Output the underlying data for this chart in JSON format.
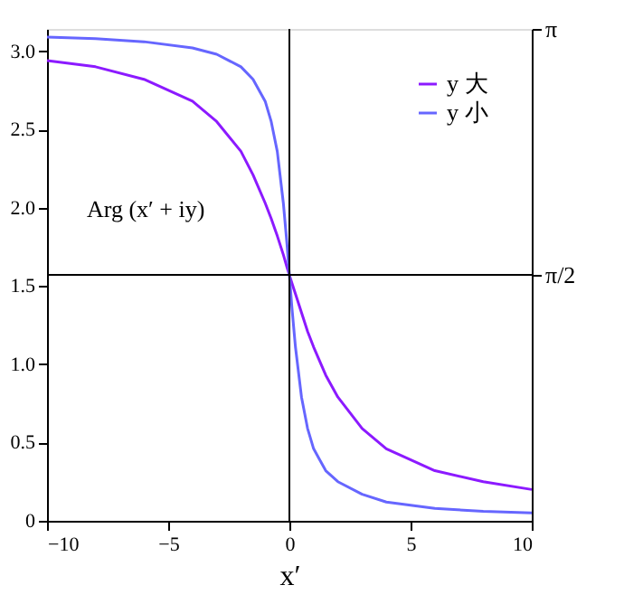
{
  "chart_data": {
    "type": "line",
    "xlabel": "x′",
    "annotations": [
      "Arg (x′ + iy)"
    ],
    "x": [
      -10,
      -8,
      -6,
      -4,
      -3,
      -2,
      -1.5,
      -1,
      -0.75,
      -0.5,
      -0.25,
      -0.1,
      0,
      0.1,
      0.25,
      0.5,
      0.75,
      1,
      1.5,
      2,
      3,
      4,
      6,
      8,
      10
    ],
    "series": [
      {
        "name": "y 大",
        "color": "#8c1aff",
        "values": [
          2.94,
          2.9,
          2.82,
          2.68,
          2.55,
          2.36,
          2.21,
          2.03,
          1.93,
          1.82,
          1.7,
          1.62,
          1.57,
          1.52,
          1.45,
          1.33,
          1.21,
          1.11,
          0.93,
          0.79,
          0.59,
          0.46,
          0.32,
          0.25,
          0.2
        ]
      },
      {
        "name": "y 小",
        "color": "#6666ff",
        "values": [
          3.09,
          3.08,
          3.06,
          3.02,
          2.98,
          2.9,
          2.82,
          2.68,
          2.55,
          2.36,
          2.03,
          1.77,
          1.57,
          1.37,
          1.11,
          0.79,
          0.59,
          0.46,
          0.32,
          0.25,
          0.17,
          0.12,
          0.08,
          0.06,
          0.05
        ]
      }
    ],
    "xlim": [
      -10,
      10
    ],
    "xticks": [
      -10,
      -5,
      0,
      5,
      10
    ],
    "ylim": [
      0,
      3.1416
    ],
    "yticks": [
      {
        "value": 0,
        "label": "0"
      },
      0.5,
      {
        "value": 1,
        "label": "1.0"
      },
      1.5,
      {
        "value": 2,
        "label": "2.0"
      },
      2.5,
      {
        "value": 3,
        "label": "3.0"
      }
    ],
    "y2lim": [
      0,
      3.1416
    ],
    "y2ticks": [
      {
        "value": 1.5708,
        "label": "π/2"
      },
      {
        "value": 3.1416,
        "label": "π"
      }
    ],
    "ref_lines": [
      {
        "axis": "y2",
        "value": 1.5708,
        "color": "#000000"
      },
      {
        "axis": "x",
        "value": 0,
        "color": "#000000"
      }
    ],
    "legend": "top right",
    "grid": false,
    "marker": "none",
    "line_style": "solid"
  }
}
